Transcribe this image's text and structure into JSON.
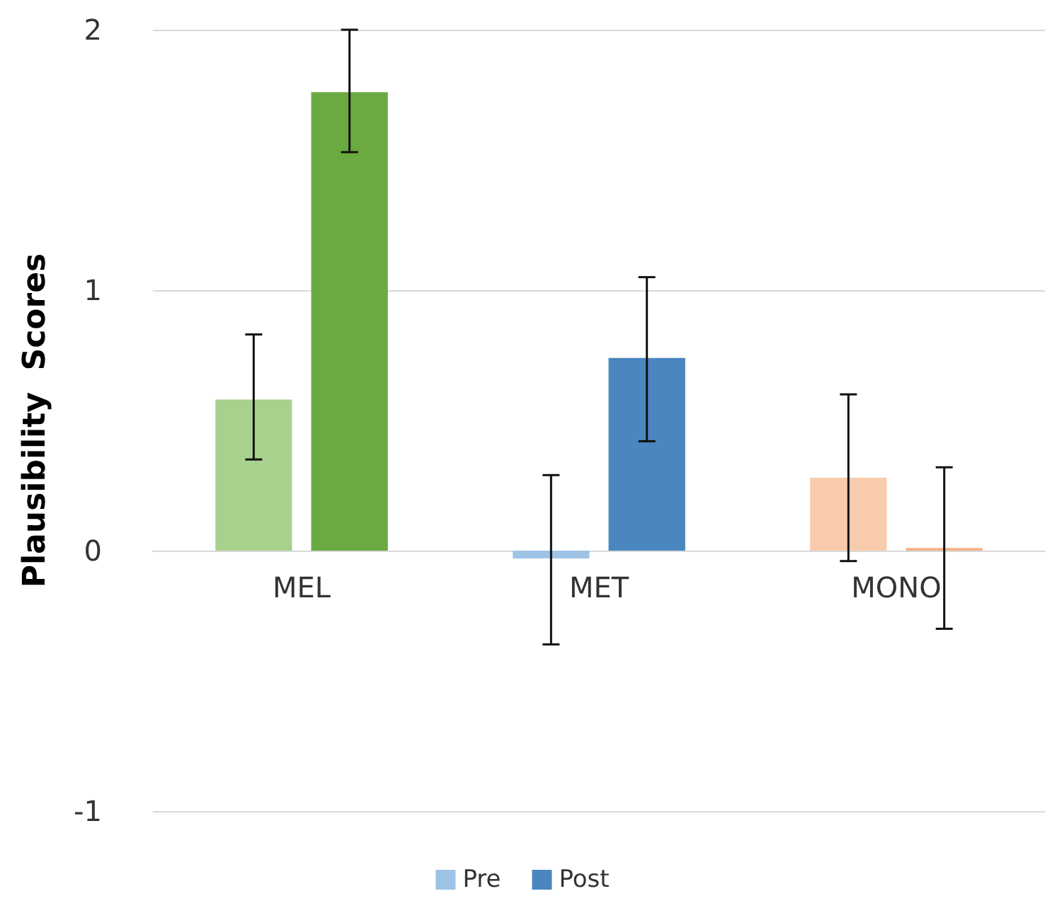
{
  "chart_data": {
    "type": "bar",
    "ylabel": "Plausibility  Scores",
    "categories": [
      "MEL",
      "MET",
      "MONO"
    ],
    "series": [
      {
        "name": "Pre",
        "color": "#9dc3e6",
        "colors": [
          "#a9d18e",
          "#9dc3e6",
          "#f8cbad"
        ],
        "values": [
          0.58,
          -0.03,
          0.28
        ],
        "errors": [
          [
            0.35,
            0.83
          ],
          [
            -0.36,
            0.29
          ],
          [
            -0.04,
            0.6
          ]
        ]
      },
      {
        "name": "Post",
        "color": "#4a86c0",
        "colors": [
          "#6aaa40",
          "#4a86c0",
          "#f4b183"
        ],
        "values": [
          1.76,
          0.74,
          0.01
        ],
        "errors": [
          [
            1.53,
            2.0
          ],
          [
            0.42,
            1.05
          ],
          [
            -0.3,
            0.32
          ]
        ]
      }
    ],
    "ylim": [
      -1,
      2
    ],
    "yticks": [
      -1,
      0,
      1,
      2
    ],
    "grid": "y",
    "legend": "bottom"
  }
}
